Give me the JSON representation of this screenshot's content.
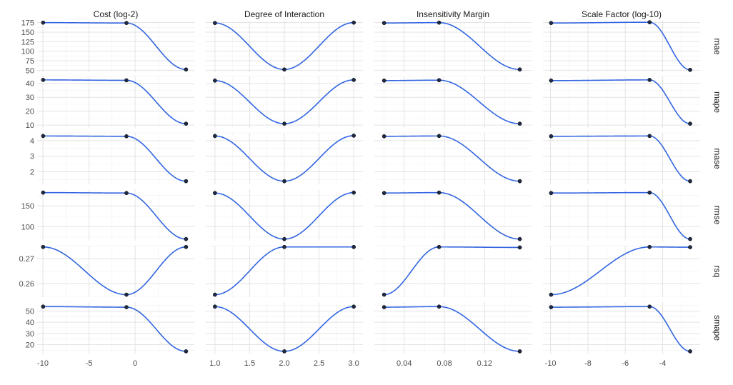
{
  "chart_data": {
    "type": "line",
    "columns": [
      {
        "title": "Cost (log-2)",
        "xlim": [
          -10,
          5.8
        ],
        "ticks": [
          -10,
          -5,
          0
        ],
        "tick_labels": [
          "-10",
          "-5",
          "0"
        ]
      },
      {
        "title": "Degree of Interaction",
        "xlim": [
          0.95,
          3.05
        ],
        "ticks": [
          1.0,
          1.5,
          2.0,
          2.5,
          3.0
        ],
        "tick_labels": [
          "1.0",
          "1.5",
          "2.0",
          "2.5",
          "3.0"
        ]
      },
      {
        "title": "Insensitivity Margin",
        "xlim": [
          0.016,
          0.161
        ],
        "ticks": [
          0.04,
          0.08,
          0.12
        ],
        "tick_labels": [
          "0.04",
          "0.08",
          "0.12"
        ]
      },
      {
        "title": "Scale Factor (log-10)",
        "xlim": [
          -10.1,
          -2.3
        ],
        "ticks": [
          -10,
          -8,
          -6,
          -4
        ],
        "tick_labels": [
          "-10",
          "-8",
          "-6",
          "-4"
        ]
      }
    ],
    "rows": [
      {
        "label": "mae",
        "ylim": [
          45,
          180
        ],
        "ticks": [
          50,
          75,
          100,
          125,
          150,
          175
        ],
        "tick_labels": [
          "50",
          "75",
          "100",
          "125",
          "150",
          "175"
        ]
      },
      {
        "label": "mape",
        "ylim": [
          8,
          45
        ],
        "ticks": [
          10,
          20,
          30,
          40
        ],
        "tick_labels": [
          "10",
          "20",
          "30",
          "40"
        ]
      },
      {
        "label": "mase",
        "ylim": [
          1.2,
          4.5
        ],
        "ticks": [
          2,
          3,
          4
        ],
        "tick_labels": [
          "2",
          "3",
          "4"
        ]
      },
      {
        "label": "rmse",
        "ylim": [
          66,
          190
        ],
        "ticks": [
          100,
          150
        ],
        "tick_labels": [
          "100",
          "150"
        ]
      },
      {
        "label": "rsq",
        "ylim": [
          0.2545,
          0.2752
        ],
        "ticks": [
          0.26,
          0.27
        ],
        "tick_labels": [
          "0.26",
          "0.27"
        ]
      },
      {
        "label": "smape",
        "ylim": [
          12,
          58
        ],
        "ticks": [
          20,
          30,
          40,
          50
        ],
        "tick_labels": [
          "20",
          "30",
          "40",
          "50"
        ]
      }
    ],
    "x_points": [
      [
        -9.97,
        -0.94,
        5.52
      ],
      [
        1.0,
        2.0,
        3.0
      ],
      [
        0.02,
        0.0747,
        0.155
      ],
      [
        -9.97,
        -4.7,
        -2.53
      ]
    ],
    "y_points": {
      "mae": [
        [
          175,
          174,
          52
        ],
        [
          174,
          52,
          175
        ],
        [
          174,
          175,
          52
        ],
        [
          174,
          176,
          51
        ]
      ],
      "mape": [
        [
          42.5,
          42.2,
          11
        ],
        [
          42,
          11,
          42.5
        ],
        [
          42,
          42.3,
          11
        ],
        [
          42,
          42.5,
          11
        ]
      ],
      "mase": [
        [
          4.3,
          4.28,
          1.4
        ],
        [
          4.3,
          1.4,
          4.32
        ],
        [
          4.28,
          4.3,
          1.4
        ],
        [
          4.28,
          4.3,
          1.4
        ]
      ],
      "rmse": [
        [
          182,
          181,
          70
        ],
        [
          181,
          70,
          182
        ],
        [
          181,
          182,
          70
        ],
        [
          181,
          182,
          70
        ]
      ],
      "rsq": [
        [
          0.2747,
          0.2555,
          0.2747
        ],
        [
          0.2555,
          0.2747,
          0.2747
        ],
        [
          0.2555,
          0.2747,
          0.2745
        ],
        [
          0.2555,
          0.2747,
          0.2746
        ]
      ],
      "smape": [
        [
          54,
          53.5,
          14
        ],
        [
          54,
          14,
          54
        ],
        [
          53.5,
          54,
          14
        ],
        [
          53.5,
          54,
          14
        ]
      ]
    },
    "line_color": "#3366e0",
    "point_color": "#1f2a44",
    "grid": true,
    "legend": "none"
  }
}
